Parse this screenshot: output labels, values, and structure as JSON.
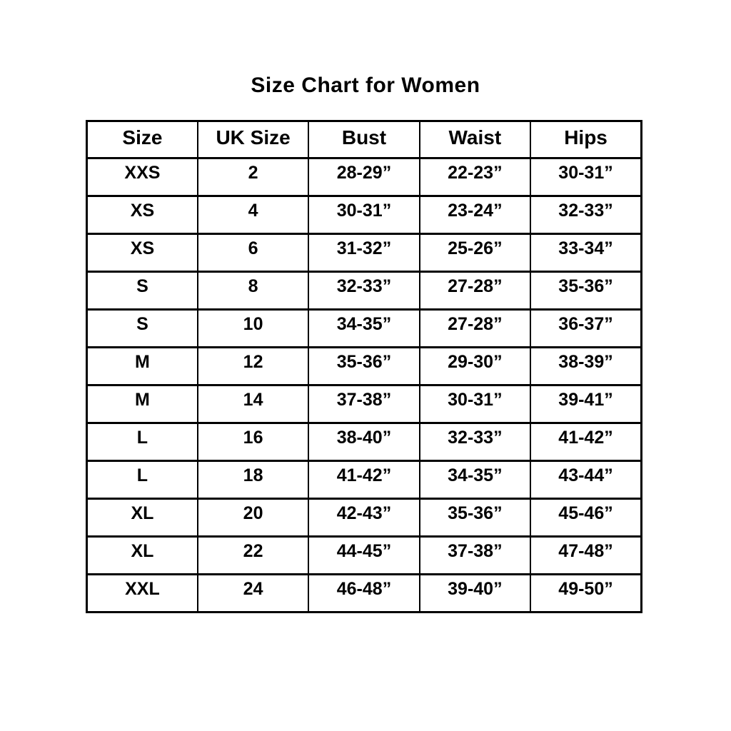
{
  "page_title": "Size Chart for Women",
  "colors": {
    "text": "#000000",
    "border": "#000000",
    "background": "#ffffff"
  },
  "chart_data": {
    "type": "table",
    "title": "Size Chart for Women",
    "columns": [
      "Size",
      "UK Size",
      "Bust",
      "Waist",
      "Hips"
    ],
    "rows": [
      [
        "XXS",
        "2",
        "28-29”",
        "22-23”",
        "30-31”"
      ],
      [
        "XS",
        "4",
        "30-31”",
        "23-24”",
        "32-33”"
      ],
      [
        "XS",
        "6",
        "31-32”",
        "25-26”",
        "33-34”"
      ],
      [
        "S",
        "8",
        "32-33”",
        "27-28”",
        "35-36”"
      ],
      [
        "S",
        "10",
        "34-35”",
        "27-28”",
        "36-37”"
      ],
      [
        "M",
        "12",
        "35-36”",
        "29-30”",
        "38-39”"
      ],
      [
        "M",
        "14",
        "37-38”",
        "30-31”",
        "39-41”"
      ],
      [
        "L",
        "16",
        "38-40”",
        "32-33”",
        "41-42”"
      ],
      [
        "L",
        "18",
        "41-42”",
        "34-35”",
        "43-44”"
      ],
      [
        "XL",
        "20",
        "42-43”",
        "35-36”",
        "45-46”"
      ],
      [
        "XL",
        "22",
        "44-45”",
        "37-38”",
        "47-48”"
      ],
      [
        "XXL",
        "24",
        "46-48”",
        "39-40”",
        "49-50”"
      ]
    ],
    "layout": {
      "grid": true,
      "legend": "none"
    }
  }
}
